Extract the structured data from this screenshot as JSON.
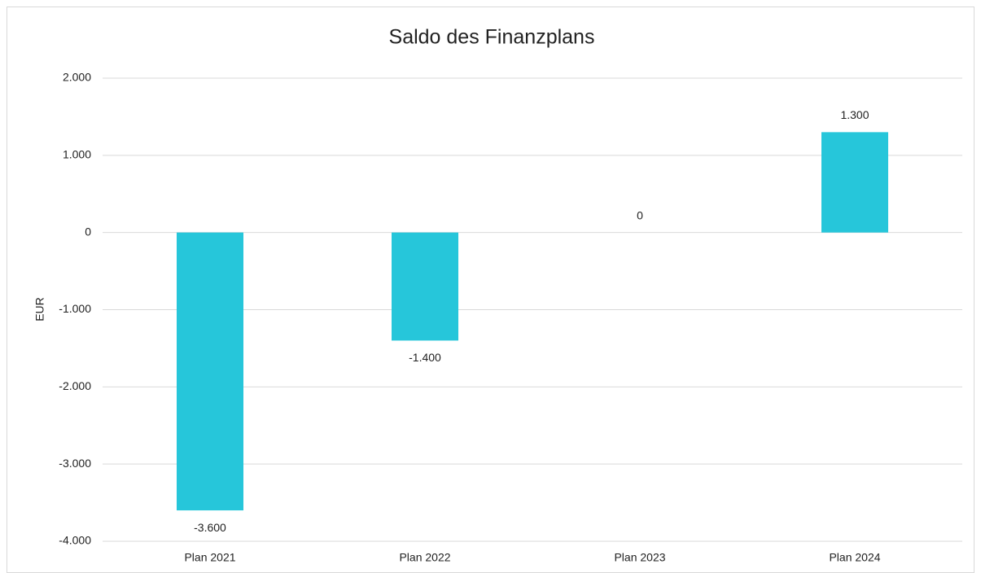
{
  "chart_data": {
    "type": "bar",
    "title": "Saldo des Finanzplans",
    "y_label": "EUR",
    "categories": [
      "Plan 2021",
      "Plan 2022",
      "Plan 2023",
      "Plan 2024"
    ],
    "values": [
      -3600,
      -1400,
      0,
      1300
    ],
    "value_labels": [
      "-3.600",
      "-1.400",
      "0",
      "1.300"
    ],
    "color": "#26c6da",
    "ylim": [
      -4000,
      2000
    ],
    "yticks": [
      {
        "value": -4000,
        "label": "-4.000"
      },
      {
        "value": -3000,
        "label": "-3.000"
      },
      {
        "value": -2000,
        "label": "-2.000"
      },
      {
        "value": -1000,
        "label": "-1.000"
      },
      0,
      {
        "value": 1000,
        "label": "1.000"
      },
      {
        "value": 2000,
        "label": "2.000"
      }
    ],
    "grid": true
  }
}
